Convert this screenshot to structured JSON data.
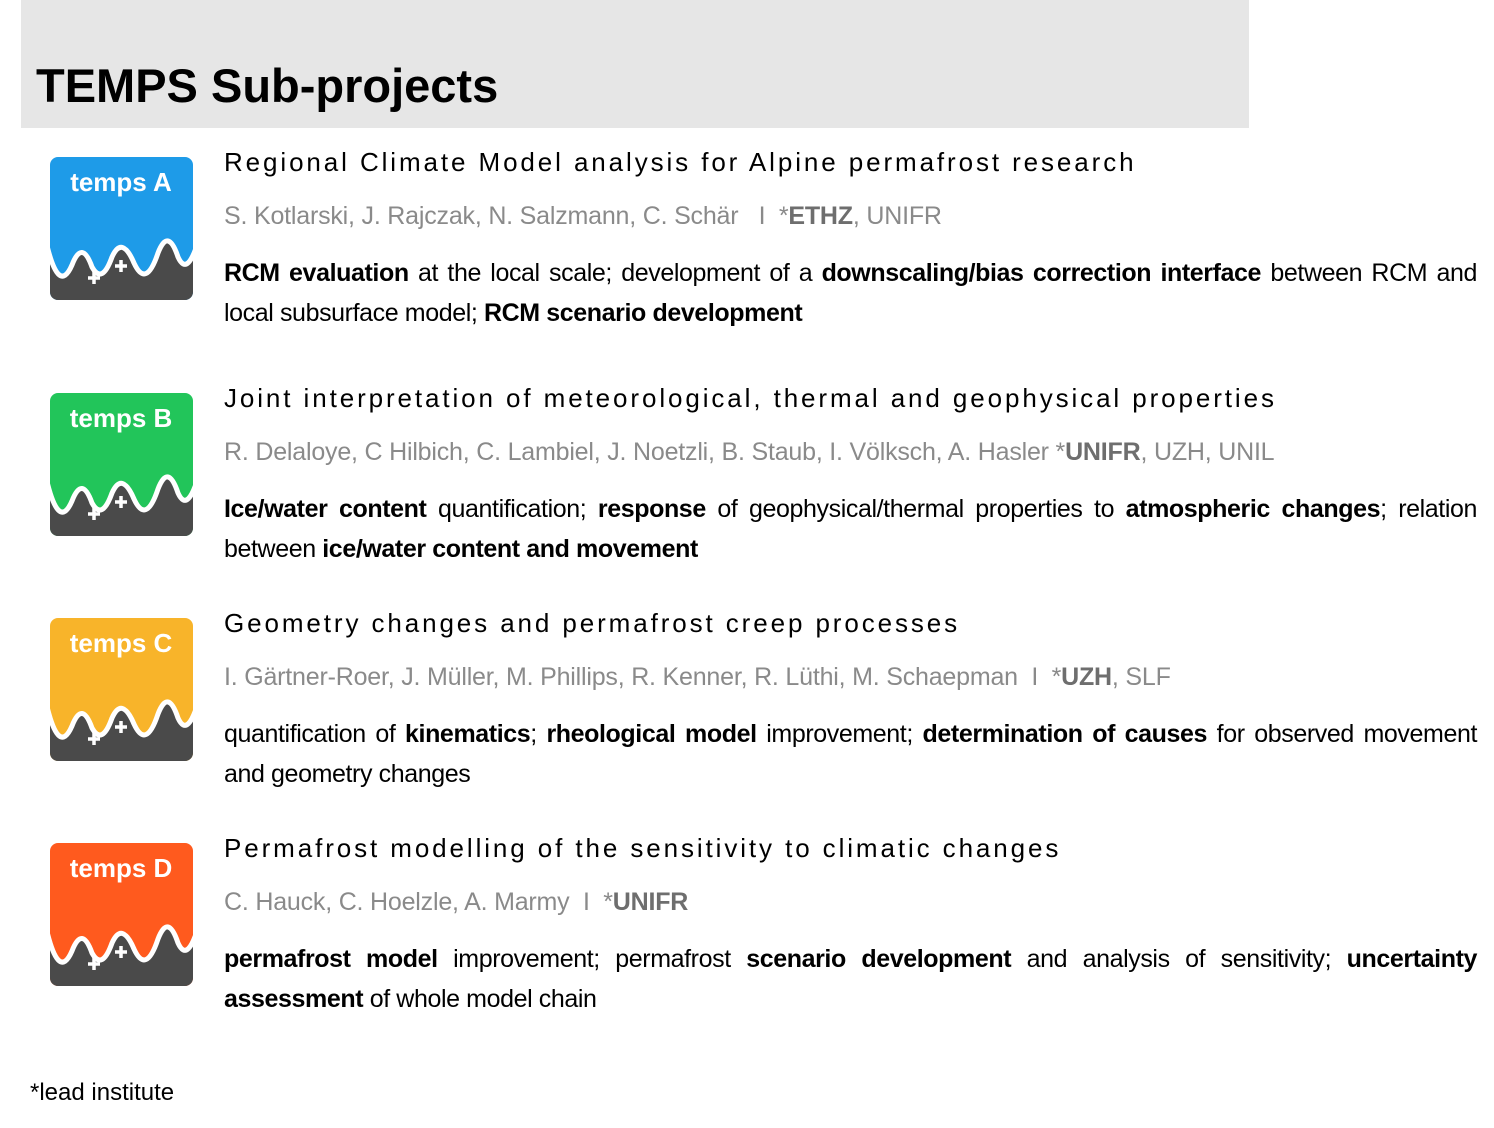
{
  "header": {
    "title": "TEMPS Sub-projects"
  },
  "projects": [
    {
      "logo": {
        "label": "temps A",
        "color": "#1e9be8"
      },
      "title": "Regional Climate Model analysis for Alpine permafrost research",
      "authors": [
        {
          "text": "S. Kotlarski, J. Rajczak, N. Salzmann, C. Schär   I  *",
          "bold": false
        },
        {
          "text": "ETHZ",
          "bold": true
        },
        {
          "text": ", UNIFR",
          "bold": false
        }
      ],
      "description": [
        {
          "text": "RCM evaluation",
          "bold": true
        },
        {
          "text": " at the local scale; development of a ",
          "bold": false
        },
        {
          "text": "downscaling/bias correction interface",
          "bold": true
        },
        {
          "text": " between RCM and local subsurface model; ",
          "bold": false
        },
        {
          "text": "RCM scenario development",
          "bold": true
        }
      ]
    },
    {
      "logo": {
        "label": "temps B",
        "color": "#22c55a"
      },
      "title": "Joint interpretation of meteorological, thermal and geophysical properties",
      "authors": [
        {
          "text": "R. Delaloye, C Hilbich, C. Lambiel, J. Noetzli, B. Staub, I. Völksch, A. Hasler *",
          "bold": false
        },
        {
          "text": "UNIFR",
          "bold": true
        },
        {
          "text": ", UZH, UNIL",
          "bold": false
        }
      ],
      "description": [
        {
          "text": "Ice/water content",
          "bold": true
        },
        {
          "text": " quantification; ",
          "bold": false
        },
        {
          "text": "response",
          "bold": true
        },
        {
          "text": " of geophysical/thermal properties to ",
          "bold": false
        },
        {
          "text": "atmospheric changes",
          "bold": true
        },
        {
          "text": "; relation between ",
          "bold": false
        },
        {
          "text": "ice/water content and movement",
          "bold": true
        }
      ]
    },
    {
      "logo": {
        "label": "temps C",
        "color": "#f8b42a"
      },
      "title": "Geometry changes and permafrost creep processes",
      "authors": [
        {
          "text": "I. Gärtner-Roer, J. Müller, M. Phillips, R. Kenner, R. Lüthi, M. Schaepman  I  *",
          "bold": false
        },
        {
          "text": "UZH",
          "bold": true
        },
        {
          "text": ", SLF",
          "bold": false
        }
      ],
      "description": [
        {
          "text": "quantification of ",
          "bold": false
        },
        {
          "text": "kinematics",
          "bold": true
        },
        {
          "text": "; ",
          "bold": false
        },
        {
          "text": "rheological model",
          "bold": true
        },
        {
          "text": " improvement; ",
          "bold": false
        },
        {
          "text": "determination of causes",
          "bold": true
        },
        {
          "text": " for observed movement and geometry changes",
          "bold": false
        }
      ]
    },
    {
      "logo": {
        "label": "temps D",
        "color": "#ff5a1e"
      },
      "title": "Permafrost modelling of the sensitivity to climatic changes",
      "authors": [
        {
          "text": "C. Hauck, C. Hoelzle, A. Marmy  I  *",
          "bold": false
        },
        {
          "text": "UNIFR",
          "bold": true
        }
      ],
      "description": [
        {
          "text": "permafrost model",
          "bold": true
        },
        {
          "text": " improvement; permafrost ",
          "bold": false
        },
        {
          "text": "scenario development",
          "bold": true
        },
        {
          "text": " and analysis of sensitivity; ",
          "bold": false
        },
        {
          "text": "uncertainty assessment",
          "bold": true
        },
        {
          "text": " of whole model chain",
          "bold": false
        }
      ]
    }
  ],
  "footer": {
    "note": "*lead institute"
  }
}
